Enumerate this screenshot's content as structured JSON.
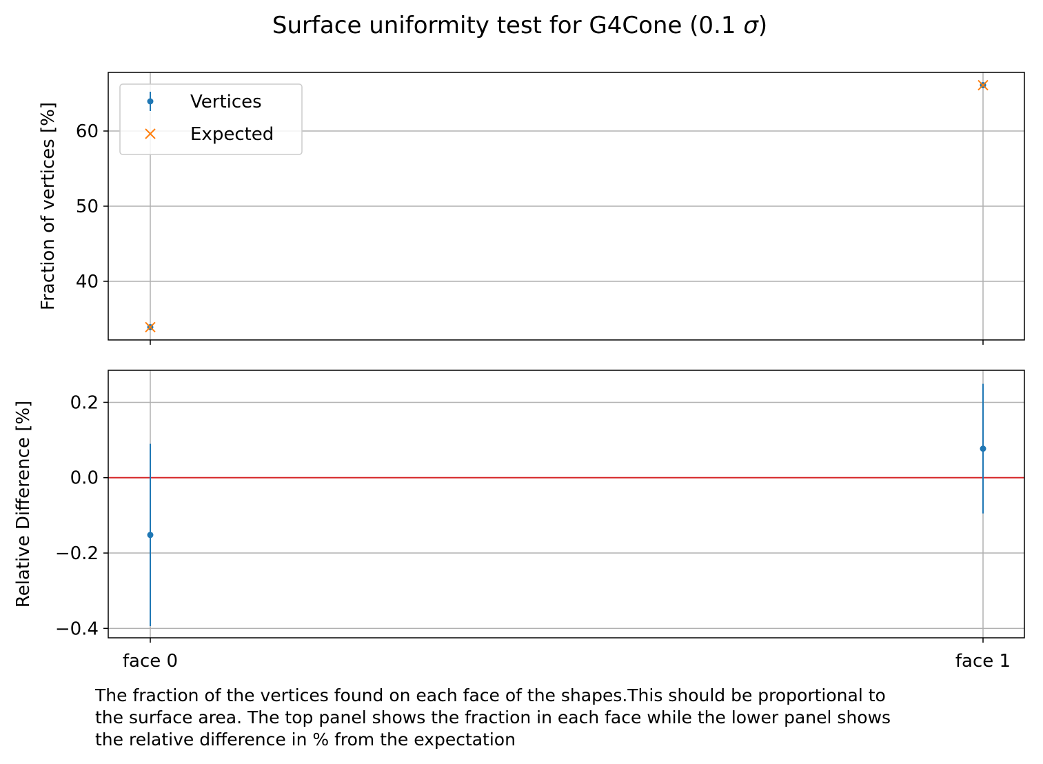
{
  "chart_data": {
    "type": "scatter",
    "title": "Surface uniformity test for G4Cone (0.1 σ)",
    "title_prefix": "Surface uniformity test for G4Cone (0.1 ",
    "title_sigma": "σ",
    "title_suffix": ")",
    "categories": [
      "face 0",
      "face 1"
    ],
    "grid": true,
    "panels": [
      {
        "ylabel": "Fraction of vertices [%]",
        "ylim": [
          32.2,
          67.8
        ],
        "yticks": [
          40,
          50,
          60
        ],
        "legend_position": "upper-left",
        "series": [
          {
            "name": "Vertices",
            "marker": "dot-errorbar",
            "color": "#1f77b4",
            "values": [
              33.9,
              66.1
            ],
            "errors": [
              0.1,
              0.1
            ]
          },
          {
            "name": "Expected",
            "marker": "x",
            "color": "#ff7f0e",
            "values": [
              33.9,
              66.1
            ]
          }
        ]
      },
      {
        "ylabel": "Relative Difference [%]",
        "ylim": [
          -0.425,
          0.285
        ],
        "yticks": [
          -0.4,
          -0.2,
          0.0,
          0.2
        ],
        "ytick_labels": [
          "−0.4",
          "−0.2",
          "0.0",
          "0.2"
        ],
        "reference_line": {
          "y": 0,
          "color": "#d62728"
        },
        "series": [
          {
            "name": "",
            "marker": "dot-errorbar",
            "color": "#1f77b4",
            "values": [
              -0.152,
              0.077
            ],
            "errors": [
              0.242,
              0.172
            ]
          }
        ]
      }
    ]
  },
  "caption": "The fraction of the vertices found on each face of the shapes.This should be proportional to\nthe surface area. The top panel shows the fraction in each face while the lower panel shows\nthe relative difference in % from the expectation"
}
